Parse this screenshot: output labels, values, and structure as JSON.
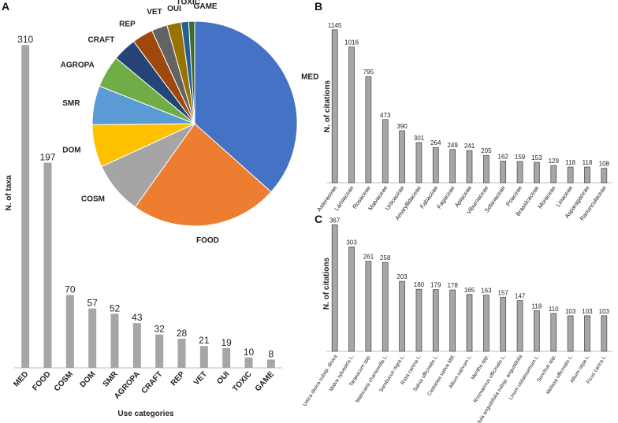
{
  "chart_data": [
    {
      "panel": "A",
      "type": "bar",
      "ylabel": "N. of taxa",
      "xlabel": "Use categories",
      "categories": [
        "MED",
        "FOOD",
        "COSM",
        "DOM",
        "SMR",
        "AGROPA",
        "CRAFT",
        "REP",
        "VET",
        "OUI",
        "TOXIC",
        "GAME"
      ],
      "values": [
        310,
        197,
        70,
        57,
        52,
        43,
        32,
        28,
        21,
        19,
        10,
        8
      ],
      "bar_color": "#a6a6a6",
      "ylim": [
        0,
        320
      ]
    },
    {
      "panel": "A-inset",
      "type": "pie",
      "labels": [
        "MED",
        "FOOD",
        "COSM",
        "DOM",
        "SMR",
        "AGROPA",
        "CRAFT",
        "REP",
        "VET",
        "OUI",
        "TOXIC",
        "GAME"
      ],
      "values": [
        310,
        197,
        70,
        57,
        52,
        43,
        32,
        28,
        21,
        19,
        10,
        8
      ],
      "colors": [
        "#4472c4",
        "#ed7d31",
        "#a5a5a5",
        "#ffc000",
        "#5b9bd5",
        "#70ad47",
        "#264478",
        "#9e480e",
        "#636363",
        "#997300",
        "#255e91",
        "#43682b"
      ]
    },
    {
      "panel": "B",
      "type": "bar",
      "ylabel": "N. of citations",
      "categories": [
        "Asteraceae",
        "Lamiaceae",
        "Rosaceae",
        "Malvaceae",
        "Urticaceae",
        "Amaryllidaceae",
        "Fabaceae",
        "Fagaceae",
        "Apiaceae",
        "Viburnaceae",
        "Solanaceae",
        "Poaceae",
        "Brassicaceae",
        "Moraceae",
        "Linaceae",
        "Asparagaceae",
        "Ranunculaceae"
      ],
      "values": [
        1145,
        1016,
        795,
        473,
        390,
        301,
        264,
        249,
        241,
        205,
        162,
        159,
        153,
        129,
        118,
        118,
        108
      ],
      "bar_color": "#a6a6a6",
      "ylim": [
        0,
        1150
      ]
    },
    {
      "panel": "C",
      "type": "bar",
      "ylabel": "N. of citations",
      "categories": [
        "Urtica dioica subsp. dioica",
        "Malva sylvestris L.",
        "Taraxacum spp.",
        "Matricaria chamomilla L.",
        "Sambucus nigra L.",
        "Rosa canina L.",
        "Salvia officinalis L.",
        "Castanea sativa Mill.",
        "Allium sativum L.",
        "Mentha spp.",
        "Rosmarinus officinalis L.",
        "Lavandula angustifolia subsp. angustifolia",
        "Linum usitatissimum L.",
        "Sonchus spp.",
        "Melissa officinalis L.",
        "Allium cepa L.",
        "Ficus carica L."
      ],
      "values": [
        367,
        303,
        261,
        258,
        203,
        180,
        179,
        178,
        165,
        163,
        157,
        147,
        118,
        110,
        103,
        103,
        103
      ],
      "bar_color": "#a6a6a6",
      "ylim": [
        0,
        370
      ]
    }
  ],
  "panel_letters": {
    "a": "A",
    "b": "B",
    "c": "C"
  }
}
